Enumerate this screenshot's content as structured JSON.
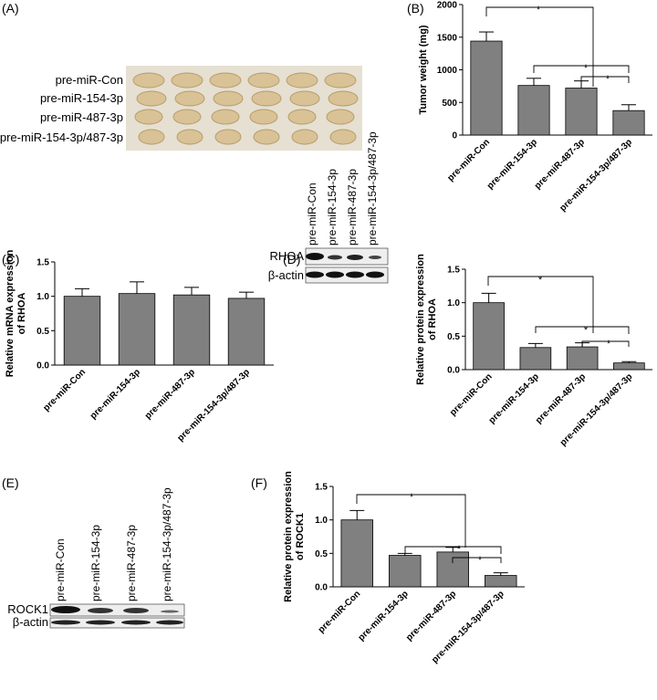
{
  "panel_labels": [
    "(A)",
    "(B)",
    "(C)",
    "(D)",
    "(E)",
    "(F)"
  ],
  "photo": {
    "labels": [
      "pre-miR-Con",
      "pre-miR-154-3p",
      "pre-miR-487-3p",
      "pre-miR-154-3p/487-3p"
    ]
  },
  "blot_d": {
    "lanes": [
      "pre-miR-Con",
      "pre-miR-154-3p",
      "pre-miR-487-3p",
      "pre-miR-154-3p/487-3p"
    ],
    "rows": [
      "RHOA",
      "β-actin"
    ]
  },
  "blot_e": {
    "lanes": [
      "pre-miR-Con",
      "pre-miR-154-3p",
      "pre-miR-487-3p",
      "pre-miR-154-3p/487-3p"
    ],
    "rows": [
      "ROCK1",
      "β-actin"
    ]
  },
  "chart_data": [
    {
      "type": "bar",
      "ylabel": [
        "Tumor weight (mg)"
      ],
      "categories": [
        "pre-miR-Con",
        "pre-miR-154-3p",
        "pre-miR-487-3p",
        "pre-miR-154-3p/487-3p"
      ],
      "values": [
        1440,
        760,
        720,
        375
      ],
      "errors": [
        140,
        110,
        110,
        90
      ],
      "color": "#808080",
      "ylim": [
        0,
        2000
      ],
      "yticks": [
        0,
        500,
        1000,
        1500,
        2000
      ],
      "annotations": [
        "*",
        "*",
        "*"
      ]
    },
    {
      "type": "bar",
      "ylabel": [
        "Relative mRNA expression",
        "of RHOA"
      ],
      "categories": [
        "pre-miR-Con",
        "pre-miR-154-3p",
        "pre-miR-487-3p",
        "pre-miR-154-3p/487-3p"
      ],
      "values": [
        1.0,
        1.04,
        1.02,
        0.97
      ],
      "errors": [
        0.11,
        0.17,
        0.11,
        0.09
      ],
      "color": "#808080",
      "ylim": [
        0,
        1.5
      ],
      "yticks": [
        {
          "value": 0,
          "label": "0.0"
        },
        {
          "value": 0.5,
          "label": "0.5"
        },
        {
          "value": 1,
          "label": "1.0"
        },
        {
          "value": 1.5,
          "label": "1.5"
        }
      ],
      "annotations": []
    },
    {
      "type": "bar",
      "ylabel": [
        "Relative protein expression",
        "of RHOA"
      ],
      "categories": [
        "pre-miR-Con",
        "pre-miR-154-3p",
        "pre-miR-487-3p",
        "pre-miR-154-3p/487-3p"
      ],
      "values": [
        1.0,
        0.33,
        0.34,
        0.1
      ],
      "errors": [
        0.14,
        0.06,
        0.06,
        0.02
      ],
      "color": "#808080",
      "ylim": [
        0,
        1.5
      ],
      "yticks": [
        {
          "value": 0,
          "label": "0.0"
        },
        {
          "value": 0.5,
          "label": "0.5"
        },
        {
          "value": 1,
          "label": "1.0"
        },
        {
          "value": 1.5,
          "label": "1.5"
        }
      ],
      "annotations": [
        "*",
        "*",
        "*"
      ]
    },
    {
      "type": "bar",
      "ylabel": [
        "Relative protein expression",
        "of ROCK1"
      ],
      "categories": [
        "pre-miR-Con",
        "pre-miR-154-3p",
        "pre-miR-487-3p",
        "pre-miR-154-3p/487-3p"
      ],
      "values": [
        1.0,
        0.47,
        0.52,
        0.17
      ],
      "errors": [
        0.14,
        0.03,
        0.07,
        0.04
      ],
      "color": "#808080",
      "ylim": [
        0,
        1.5
      ],
      "yticks": [
        {
          "value": 0,
          "label": "0.0"
        },
        {
          "value": 0.5,
          "label": "0.5"
        },
        {
          "value": 1,
          "label": "1.0"
        },
        {
          "value": 1.5,
          "label": "1.5"
        }
      ],
      "annotations": [
        "*",
        "*",
        "*"
      ]
    }
  ]
}
